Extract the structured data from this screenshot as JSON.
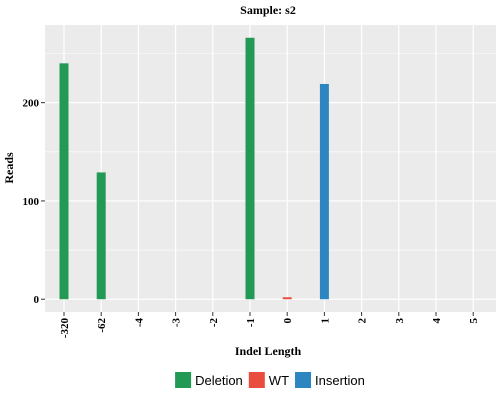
{
  "chart_data": {
    "type": "bar",
    "title": "Sample: s2",
    "xlabel": "Indel Length",
    "ylabel": "Reads",
    "categories": [
      "-320",
      "-62",
      "-4",
      "-3",
      "-2",
      "-1",
      "0",
      "1",
      "2",
      "3",
      "4",
      "5"
    ],
    "series": [
      {
        "name": "Deletion",
        "color": "#229954",
        "values": [
          240,
          129,
          0,
          0,
          0,
          266,
          0,
          0,
          0,
          0,
          0,
          0
        ]
      },
      {
        "name": "WT",
        "color": "#E74C3C",
        "values": [
          0,
          0,
          0,
          0,
          0,
          0,
          2,
          0,
          0,
          0,
          0,
          0
        ]
      },
      {
        "name": "Insertion",
        "color": "#2E86C1",
        "values": [
          0,
          0,
          0,
          0,
          0,
          0,
          0,
          219,
          0,
          0,
          0,
          0
        ]
      }
    ],
    "yticks": [
      0,
      100,
      200
    ],
    "ylim": [
      -13,
      279
    ],
    "grid": true,
    "legend_position": "bottom",
    "panel_background": "#EBEBEB",
    "gridline_color": "#FFFFFF"
  }
}
